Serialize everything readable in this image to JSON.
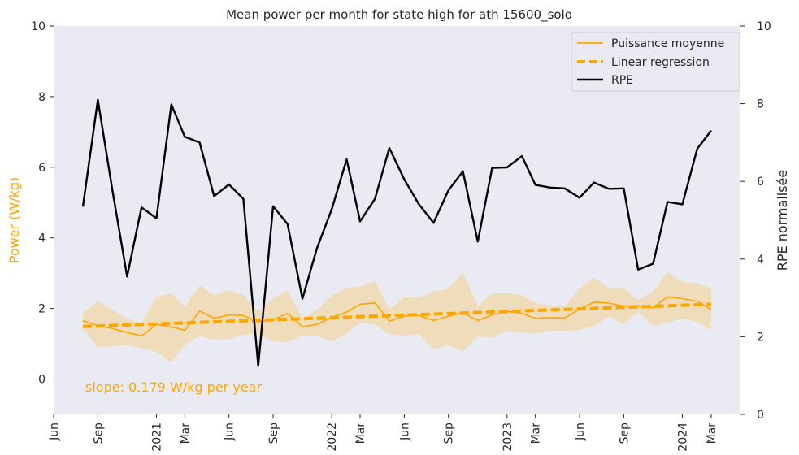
{
  "chart_data": {
    "type": "line",
    "title": "Mean power per month for state high for ath 15600_solo",
    "ylabel_left": "Power (W/kg)",
    "ylabel_right": "RPE normalisée",
    "ylim_left": [
      -1,
      10
    ],
    "ylim_right": [
      0,
      10
    ],
    "yticks_left": [
      0,
      2,
      4,
      6,
      8,
      10
    ],
    "yticks_right": [
      0,
      2,
      4,
      6,
      8,
      10
    ],
    "xlim": [
      "2020-06-01",
      "2024-05-01"
    ],
    "xticks": [
      {
        "date": "2020-06-01",
        "label": "Jun"
      },
      {
        "date": "2020-09-01",
        "label": "Sep"
      },
      {
        "date": "2021-01-01",
        "label": "2021"
      },
      {
        "date": "2021-03-01",
        "label": "Mar"
      },
      {
        "date": "2021-06-01",
        "label": "Jun"
      },
      {
        "date": "2021-09-01",
        "label": "Sep"
      },
      {
        "date": "2022-01-01",
        "label": "2022"
      },
      {
        "date": "2022-03-01",
        "label": "Mar"
      },
      {
        "date": "2022-06-01",
        "label": "Jun"
      },
      {
        "date": "2022-09-01",
        "label": "Sep"
      },
      {
        "date": "2023-01-01",
        "label": "2023"
      },
      {
        "date": "2023-03-01",
        "label": "Mar"
      },
      {
        "date": "2023-06-01",
        "label": "Jun"
      },
      {
        "date": "2023-09-01",
        "label": "Sep"
      },
      {
        "date": "2024-01-01",
        "label": "2024"
      },
      {
        "date": "2024-03-01",
        "label": "Mar"
      }
    ],
    "x": [
      "2020-08-01",
      "2020-09-01",
      "2020-10-01",
      "2020-11-01",
      "2020-12-01",
      "2021-01-01",
      "2021-02-01",
      "2021-03-01",
      "2021-04-01",
      "2021-05-01",
      "2021-06-01",
      "2021-07-01",
      "2021-08-01",
      "2021-09-01",
      "2021-10-01",
      "2021-11-01",
      "2021-12-01",
      "2022-01-01",
      "2022-02-01",
      "2022-03-01",
      "2022-04-01",
      "2022-05-01",
      "2022-06-01",
      "2022-07-01",
      "2022-08-01",
      "2022-09-01",
      "2022-10-01",
      "2022-11-01",
      "2022-12-01",
      "2023-01-01",
      "2023-02-01",
      "2023-03-01",
      "2023-04-01",
      "2023-05-01",
      "2023-06-01",
      "2023-07-01",
      "2023-08-01",
      "2023-09-01",
      "2023-10-01",
      "2023-11-01",
      "2023-12-01",
      "2024-01-01",
      "2024-02-01",
      "2024-03-01"
    ],
    "series": [
      {
        "name": "Puissance moyenne",
        "axis": "left",
        "color": "#FFA500",
        "values": [
          1.65,
          1.52,
          1.43,
          1.32,
          1.22,
          1.55,
          1.48,
          1.38,
          1.93,
          1.72,
          1.82,
          1.8,
          1.62,
          1.68,
          1.86,
          1.48,
          1.55,
          1.75,
          1.9,
          2.12,
          2.16,
          1.64,
          1.78,
          1.8,
          1.66,
          1.78,
          1.88,
          1.66,
          1.82,
          1.92,
          1.86,
          1.72,
          1.74,
          1.73,
          1.98,
          2.18,
          2.15,
          2.07,
          2.08,
          2.02,
          2.33,
          2.28,
          2.2,
          1.97
        ]
      },
      {
        "name": "RPE",
        "axis": "right",
        "color": "#000000",
        "values": [
          5.35,
          8.1,
          5.8,
          3.55,
          5.33,
          5.05,
          7.98,
          7.15,
          7.0,
          5.62,
          5.92,
          5.55,
          1.25,
          5.36,
          4.9,
          2.98,
          4.27,
          5.28,
          6.57,
          4.97,
          5.55,
          6.86,
          6.05,
          5.42,
          4.93,
          5.77,
          6.26,
          4.45,
          6.35,
          6.36,
          6.65,
          5.91,
          5.84,
          5.82,
          5.58,
          5.97,
          5.81,
          5.82,
          3.73,
          3.88,
          5.47,
          5.41,
          6.84,
          7.31
        ]
      },
      {
        "name": "Linear regression",
        "axis": "left",
        "color": "#FFA500",
        "style": "dashed",
        "x": [
          "2020-08-01",
          "2024-03-01"
        ],
        "values": [
          1.49,
          2.12
        ]
      }
    ],
    "band": {
      "axis": "left",
      "color": "#F0D9B0",
      "upper": [
        1.86,
        2.22,
        1.96,
        1.72,
        1.58,
        2.33,
        2.43,
        2.05,
        2.65,
        2.38,
        2.52,
        2.38,
        1.92,
        2.27,
        2.52,
        1.72,
        1.95,
        2.38,
        2.58,
        2.62,
        2.78,
        1.98,
        2.32,
        2.3,
        2.48,
        2.55,
        3.02,
        2.07,
        2.43,
        2.43,
        2.38,
        2.16,
        2.09,
        2.06,
        2.56,
        2.87,
        2.58,
        2.56,
        2.24,
        2.48,
        3.02,
        2.75,
        2.7,
        2.58
      ],
      "lower": [
        1.42,
        0.89,
        0.93,
        0.97,
        0.87,
        0.77,
        0.47,
        0.97,
        1.22,
        1.12,
        1.13,
        1.26,
        1.3,
        1.06,
        1.05,
        1.23,
        1.23,
        1.06,
        1.3,
        1.6,
        1.55,
        1.27,
        1.22,
        1.28,
        0.84,
        0.97,
        0.78,
        1.21,
        1.17,
        1.37,
        1.32,
        1.28,
        1.38,
        1.37,
        1.39,
        1.5,
        1.78,
        1.55,
        1.9,
        1.5,
        1.59,
        1.72,
        1.63,
        1.38
      ]
    },
    "legend": {
      "position": "top-right",
      "entries": [
        "Puissance moyenne",
        "Linear regression",
        "RPE"
      ]
    },
    "annotation": "slope: 0.179 W/kg per year",
    "grid": false,
    "background": "#EAEAF2"
  }
}
